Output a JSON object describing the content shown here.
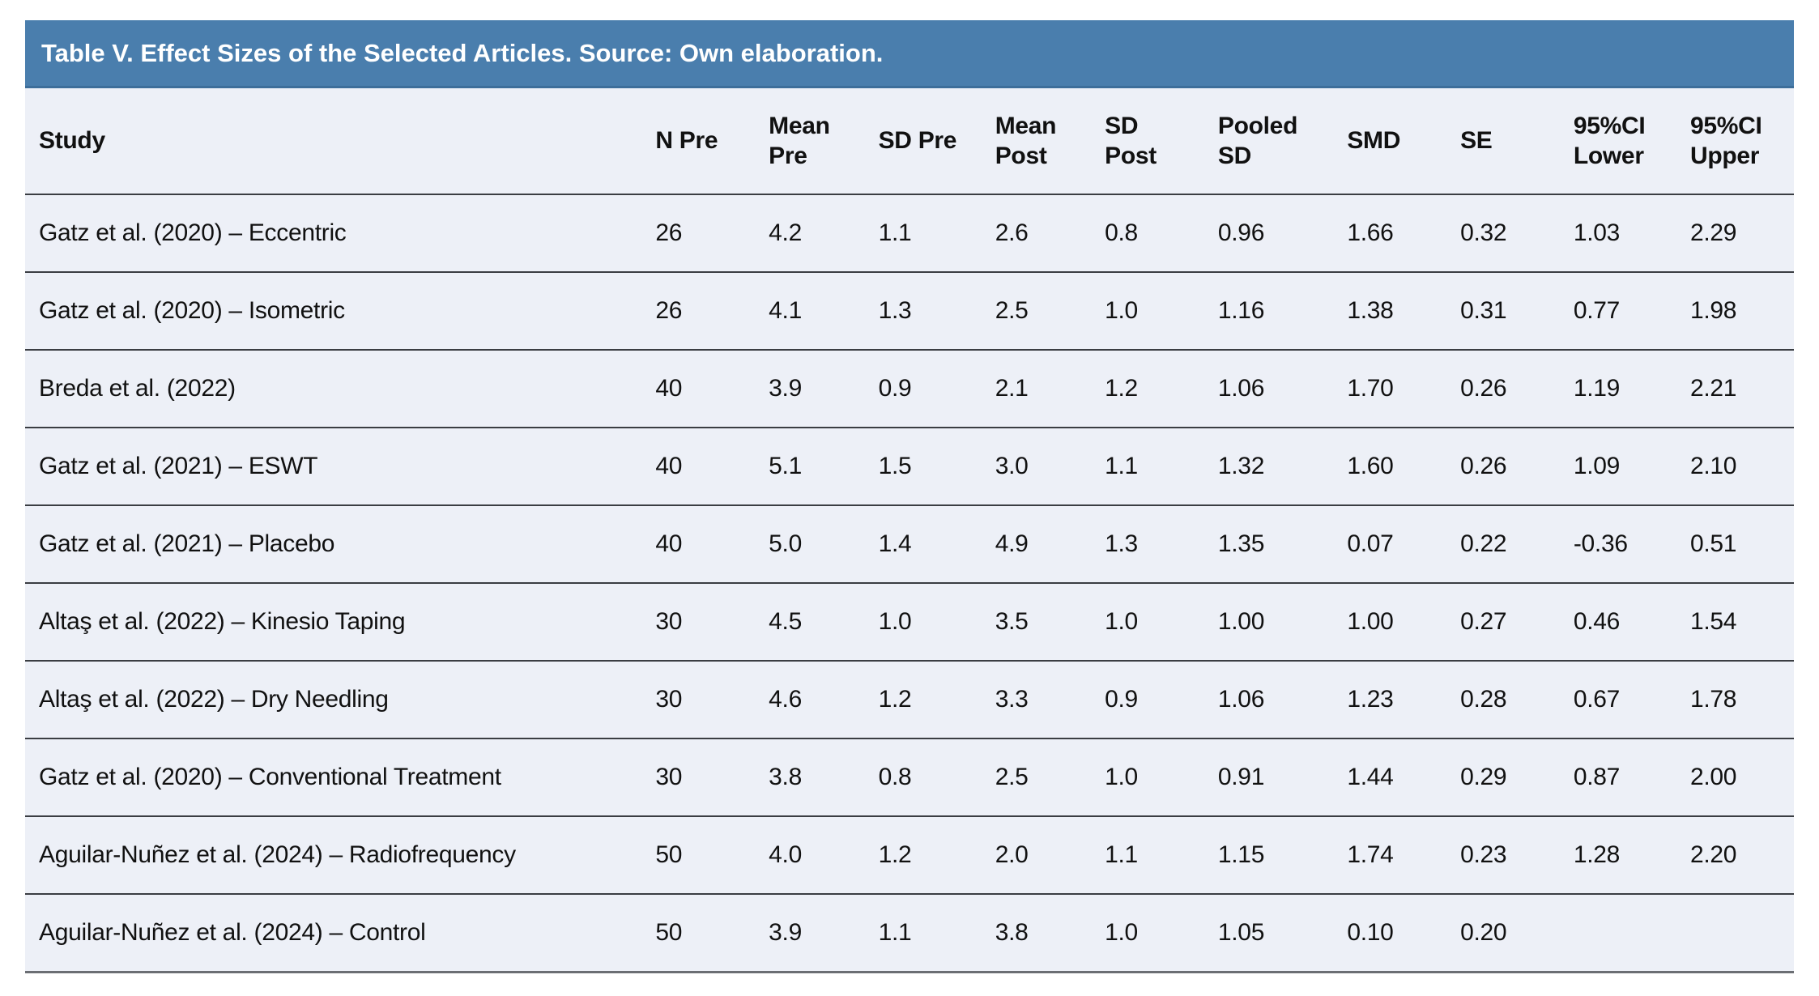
{
  "table": {
    "title": "Table V. Effect Sizes of the Selected Articles. Source: Own elaboration.",
    "columns": [
      "Study",
      "N Pre",
      "Mean\nPre",
      "SD Pre",
      "Mean\nPost",
      "SD\nPost",
      "Pooled\nSD",
      "SMD",
      "SE",
      "95%CI\nLower",
      "95%CI\nUpper"
    ],
    "rows": [
      [
        "Gatz et al. (2020) – Eccentric",
        "26",
        "4.2",
        "1.1",
        "2.6",
        "0.8",
        "0.96",
        "1.66",
        "0.32",
        "1.03",
        "2.29"
      ],
      [
        "Gatz et al. (2020) – Isometric",
        "26",
        "4.1",
        "1.3",
        "2.5",
        "1.0",
        "1.16",
        "1.38",
        "0.31",
        "0.77",
        "1.98"
      ],
      [
        "Breda et al. (2022)",
        "40",
        "3.9",
        "0.9",
        "2.1",
        "1.2",
        "1.06",
        "1.70",
        "0.26",
        "1.19",
        "2.21"
      ],
      [
        "Gatz et al. (2021) – ESWT",
        "40",
        "5.1",
        "1.5",
        "3.0",
        "1.1",
        "1.32",
        "1.60",
        "0.26",
        "1.09",
        "2.10"
      ],
      [
        "Gatz et al. (2021) – Placebo",
        "40",
        "5.0",
        "1.4",
        "4.9",
        "1.3",
        "1.35",
        "0.07",
        "0.22",
        "-0.36",
        "0.51"
      ],
      [
        "Altaş et al. (2022) – Kinesio Taping",
        "30",
        "4.5",
        "1.0",
        "3.5",
        "1.0",
        "1.00",
        "1.00",
        "0.27",
        "0.46",
        "1.54"
      ],
      [
        "Altaş et al. (2022) – Dry Needling",
        "30",
        "4.6",
        "1.2",
        "3.3",
        "0.9",
        "1.06",
        "1.23",
        "0.28",
        "0.67",
        "1.78"
      ],
      [
        "Gatz et al. (2020) – Conventional Treatment",
        "30",
        "3.8",
        "0.8",
        "2.5",
        "1.0",
        "0.91",
        "1.44",
        "0.29",
        "0.87",
        "2.00"
      ],
      [
        "Aguilar-Nuñez et al. (2024) – Radiofrequency",
        "50",
        "4.0",
        "1.2",
        "2.0",
        "1.1",
        "1.15",
        "1.74",
        "0.23",
        "1.28",
        "2.20"
      ],
      [
        "Aguilar-Nuñez et al. (2024) – Control",
        "50",
        "3.9",
        "1.1",
        "3.8",
        "1.0",
        "1.05",
        "0.10",
        "0.20",
        "",
        ""
      ]
    ]
  },
  "colors": {
    "title_bar_bg": "#4A7EAD",
    "title_bar_edge": "#3D6E9A",
    "title_text": "#FFFFFF",
    "row_bg": "#EDF0F7",
    "separator": "#3A3D42",
    "bottom_border": "#6B6E73",
    "text": "#111111"
  }
}
